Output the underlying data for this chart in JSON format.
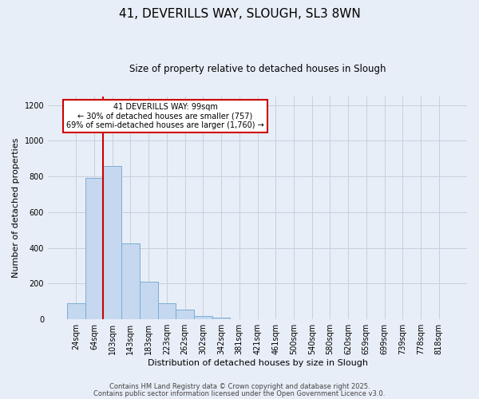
{
  "title": "41, DEVERILLS WAY, SLOUGH, SL3 8WN",
  "subtitle": "Size of property relative to detached houses in Slough",
  "xlabel": "Distribution of detached houses by size in Slough",
  "ylabel": "Number of detached properties",
  "categories": [
    "24sqm",
    "64sqm",
    "103sqm",
    "143sqm",
    "183sqm",
    "223sqm",
    "262sqm",
    "302sqm",
    "342sqm",
    "381sqm",
    "421sqm",
    "461sqm",
    "500sqm",
    "540sqm",
    "580sqm",
    "620sqm",
    "659sqm",
    "699sqm",
    "739sqm",
    "778sqm",
    "818sqm"
  ],
  "values": [
    90,
    790,
    860,
    425,
    210,
    90,
    55,
    20,
    10,
    0,
    0,
    0,
    0,
    0,
    0,
    0,
    0,
    0,
    0,
    0,
    0
  ],
  "bar_color": "#c5d8f0",
  "bar_edge_color": "#7aadd4",
  "vline_color": "#cc0000",
  "annotation_box_text": "41 DEVERILLS WAY: 99sqm\n← 30% of detached houses are smaller (757)\n69% of semi-detached houses are larger (1,760) →",
  "annotation_box_edge_color": "#cc0000",
  "annotation_box_facecolor": "#ffffff",
  "ylim": [
    0,
    1250
  ],
  "yticks": [
    0,
    200,
    400,
    600,
    800,
    1000,
    1200
  ],
  "footer1": "Contains HM Land Registry data © Crown copyright and database right 2025.",
  "footer2": "Contains public sector information licensed under the Open Government Licence v3.0.",
  "bg_color": "#e8eef7",
  "plot_bg_color": "#e8eef7",
  "grid_color": "#c8d0dc"
}
